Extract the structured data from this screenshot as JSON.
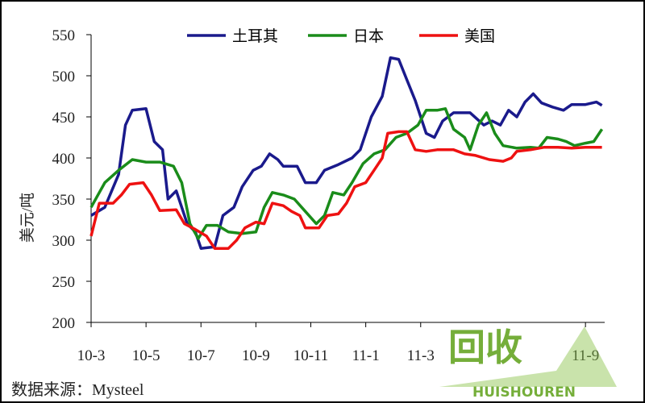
{
  "chart_data": {
    "type": "line",
    "y_label": "美元/吨",
    "source": "数据来源：Mysteel",
    "xlim": [
      0,
      18.7
    ],
    "xticks": [
      {
        "value": 0,
        "label": "10-3"
      },
      {
        "value": 2,
        "label": "10-5"
      },
      {
        "value": 4,
        "label": "10-7"
      },
      {
        "value": 6,
        "label": "10-9"
      },
      {
        "value": 8,
        "label": "10-11"
      },
      {
        "value": 10,
        "label": "11-1"
      },
      {
        "value": 12,
        "label": "11-3"
      },
      {
        "value": 18,
        "label": "11-9"
      }
    ],
    "ylim": [
      200,
      550
    ],
    "yticks": [
      200,
      250,
      300,
      350,
      400,
      450,
      500,
      550
    ],
    "grid": false,
    "legend": "top",
    "series": [
      {
        "name": "土耳其",
        "color": "#1a1a8c",
        "x": [
          0,
          0.5,
          1,
          1.25,
          1.5,
          2,
          2.3,
          2.6,
          2.8,
          3.1,
          3.5,
          3.8,
          4,
          4.5,
          4.8,
          5.2,
          5.5,
          5.9,
          6.2,
          6.5,
          6.8,
          7,
          7.5,
          7.8,
          8.2,
          8.5,
          9,
          9.5,
          9.8,
          10.2,
          10.6,
          10.9,
          11.2,
          11.5,
          11.8,
          12.2,
          12.5,
          12.8,
          13.2,
          13.8,
          14.3,
          14.6,
          14.9,
          15.2,
          15.5,
          15.8,
          16.1,
          16.4,
          16.8,
          17.2,
          17.5,
          18,
          18.4,
          18.6
        ],
        "values": [
          330,
          340,
          380,
          440,
          458,
          460,
          420,
          410,
          350,
          360,
          320,
          310,
          290,
          292,
          330,
          340,
          365,
          385,
          390,
          405,
          398,
          390,
          390,
          370,
          370,
          385,
          392,
          400,
          410,
          450,
          475,
          522,
          520,
          495,
          470,
          430,
          425,
          445,
          455,
          455,
          440,
          445,
          440,
          458,
          450,
          468,
          478,
          467,
          462,
          458,
          465,
          465,
          468,
          464
        ]
      },
      {
        "name": "日本",
        "color": "#1a8c1a",
        "x": [
          0,
          0.5,
          1,
          1.5,
          2,
          2.5,
          3,
          3.3,
          3.6,
          3.9,
          4.2,
          4.6,
          5,
          5.5,
          6,
          6.3,
          6.6,
          7,
          7.4,
          7.8,
          8.2,
          8.5,
          8.8,
          9.2,
          9.5,
          9.9,
          10.3,
          10.7,
          11.1,
          11.5,
          11.9,
          12.2,
          12.6,
          12.9,
          13.2,
          13.6,
          13.8,
          14.1,
          14.4,
          14.7,
          15,
          15.5,
          16,
          16.3,
          16.6,
          17,
          17.3,
          17.6,
          18,
          18.3,
          18.6
        ],
        "values": [
          340,
          370,
          385,
          398,
          395,
          395,
          390,
          370,
          320,
          302,
          318,
          318,
          310,
          308,
          310,
          340,
          358,
          355,
          350,
          335,
          320,
          330,
          358,
          355,
          370,
          393,
          405,
          410,
          425,
          430,
          440,
          458,
          458,
          460,
          435,
          425,
          410,
          440,
          455,
          430,
          415,
          412,
          413,
          412,
          425,
          423,
          420,
          415,
          418,
          420,
          435
        ]
      },
      {
        "name": "美国",
        "color": "#ee1111",
        "x": [
          0,
          0.3,
          0.8,
          1.1,
          1.4,
          1.9,
          2.2,
          2.5,
          3.1,
          3.4,
          3.8,
          4.2,
          4.5,
          5,
          5.3,
          5.6,
          6,
          6.3,
          6.6,
          7,
          7.3,
          7.6,
          7.8,
          8.3,
          8.6,
          9,
          9.3,
          9.6,
          10,
          10.3,
          10.6,
          10.8,
          11.2,
          11.5,
          11.8,
          12.2,
          12.6,
          13.2,
          13.6,
          14,
          14.5,
          15,
          15.3,
          15.5,
          16,
          16.5,
          17,
          17.5,
          18,
          18.6
        ],
        "values": [
          305,
          345,
          345,
          355,
          368,
          370,
          355,
          336,
          337,
          320,
          313,
          305,
          290,
          290,
          300,
          315,
          322,
          320,
          345,
          342,
          335,
          330,
          315,
          315,
          330,
          332,
          345,
          365,
          370,
          385,
          400,
          430,
          432,
          432,
          410,
          408,
          410,
          410,
          405,
          403,
          398,
          396,
          400,
          408,
          410,
          413,
          413,
          412,
          413,
          413
        ]
      }
    ]
  },
  "watermark": {
    "text": "回收",
    "subtext": "HUISHOUREN"
  }
}
